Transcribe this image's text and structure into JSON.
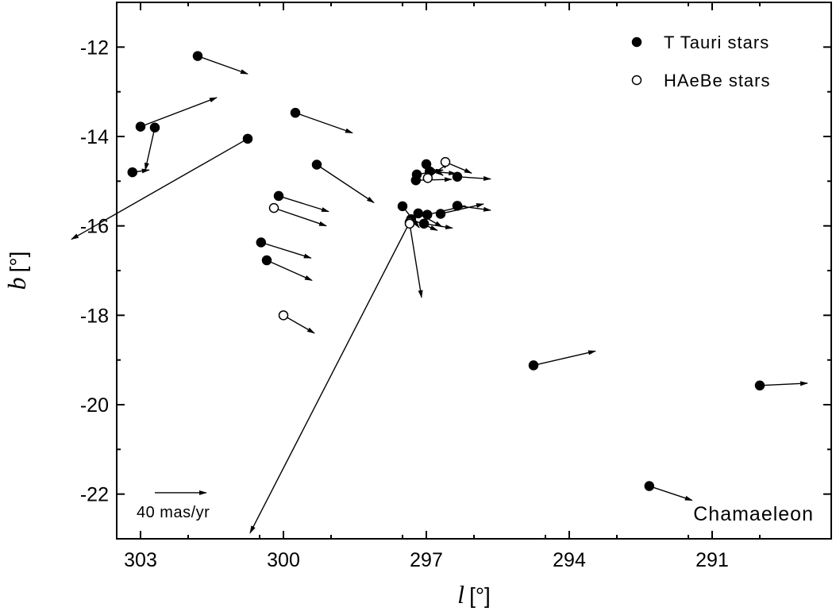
{
  "chart_data": {
    "type": "scatter",
    "xlabel": "l",
    "xlabel_unit": "[°]",
    "ylabel": "b",
    "ylabel_unit": "[°]",
    "xlim": [
      303.5,
      288.5
    ],
    "ylim": [
      -23,
      -11
    ],
    "x_reversed": true,
    "xticks": [
      303,
      300,
      297,
      294,
      291
    ],
    "yticks": [
      -12,
      -14,
      -16,
      -18,
      -20,
      -22
    ],
    "legend": [
      {
        "name": "T Tauri stars",
        "marker": "filled-circle"
      },
      {
        "name": "HAeBe stars",
        "marker": "open-circle"
      }
    ],
    "legend_position": "top-right",
    "annotation": "Chamaeleon",
    "scale_arrow": {
      "label": "40 mas/yr",
      "dl": -1.08,
      "db": 0
    },
    "series": [
      {
        "name": "T Tauri stars",
        "points": [
          {
            "l": 301.8,
            "b": -12.2,
            "dl": -1.05,
            "db": -0.4
          },
          {
            "l": 303.0,
            "b": -13.78,
            "dl": -1.6,
            "db": 0.65
          },
          {
            "l": 302.7,
            "b": -13.8,
            "dl": 0.2,
            "db": -0.95
          },
          {
            "l": 303.17,
            "b": -14.8,
            "dl": -0.35,
            "db": 0.05
          },
          {
            "l": 300.75,
            "b": -14.05,
            "dl": 3.7,
            "db": -2.25
          },
          {
            "l": 299.75,
            "b": -13.47,
            "dl": -1.2,
            "db": -0.45
          },
          {
            "l": 299.3,
            "b": -14.63,
            "dl": -1.2,
            "db": -0.85
          },
          {
            "l": 300.1,
            "b": -15.33,
            "dl": -1.05,
            "db": -0.35
          },
          {
            "l": 300.47,
            "b": -16.37,
            "dl": -1.05,
            "db": -0.35
          },
          {
            "l": 300.35,
            "b": -16.77,
            "dl": -0.95,
            "db": -0.45
          },
          {
            "l": 297.5,
            "b": -15.56,
            "dl": -0.35,
            "db": -0.48
          },
          {
            "l": 297.0,
            "b": -14.62,
            "dl": -0.35,
            "db": -0.25
          },
          {
            "l": 296.93,
            "b": -14.78,
            "dl": -0.55,
            "db": -0.05
          },
          {
            "l": 297.2,
            "b": -14.85,
            "dl": -0.55,
            "db": 0.1
          },
          {
            "l": 297.22,
            "b": -14.98,
            "dl": -0.75,
            "db": 0.02
          },
          {
            "l": 296.35,
            "b": -14.9,
            "dl": -0.7,
            "db": -0.05
          },
          {
            "l": 297.17,
            "b": -15.72,
            "dl": -0.5,
            "db": -0.3
          },
          {
            "l": 296.98,
            "b": -15.75,
            "dl": -0.8,
            "db": 0.2
          },
          {
            "l": 296.7,
            "b": -15.73,
            "dl": -0.9,
            "db": 0.22
          },
          {
            "l": 296.35,
            "b": -15.55,
            "dl": -0.7,
            "db": -0.1
          },
          {
            "l": 297.05,
            "b": -15.95,
            "dl": -0.6,
            "db": -0.1
          },
          {
            "l": 297.32,
            "b": -15.85,
            "dl": -0.55,
            "db": -0.25
          },
          {
            "l": 294.75,
            "b": -19.12,
            "dl": -1.3,
            "db": 0.32
          },
          {
            "l": 292.32,
            "b": -21.82,
            "dl": -0.9,
            "db": -0.32
          },
          {
            "l": 290.0,
            "b": -19.57,
            "dl": -1.0,
            "db": 0.05
          }
        ]
      },
      {
        "name": "HAeBe stars",
        "points": [
          {
            "l": 296.6,
            "b": -14.57,
            "dl": -0.55,
            "db": -0.25
          },
          {
            "l": 296.97,
            "b": -14.93,
            "dl": -0.45,
            "db": 0.35
          },
          {
            "l": 297.35,
            "b": -15.92,
            "dl": 3.35,
            "db": -6.95
          },
          {
            "l": 297.35,
            "b": -15.95,
            "dl": -0.25,
            "db": -1.65
          },
          {
            "l": 300.2,
            "b": -15.6,
            "dl": -1.1,
            "db": -0.4
          },
          {
            "l": 300.0,
            "b": -18.0,
            "dl": -0.65,
            "db": -0.4
          }
        ]
      }
    ]
  }
}
